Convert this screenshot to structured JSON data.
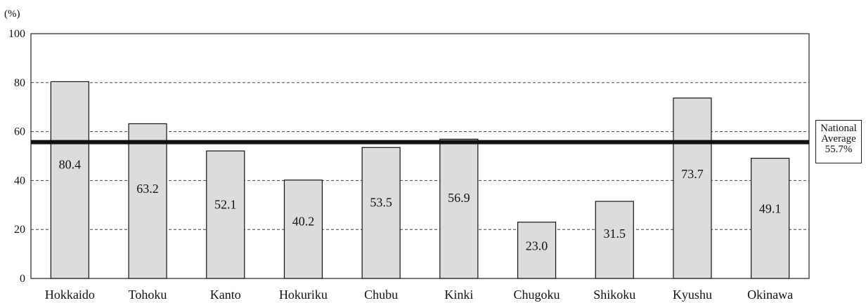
{
  "chart_data": {
    "type": "bar",
    "y_unit_label": "(%)",
    "categories": [
      "Hokkaido",
      "Tohoku",
      "Kanto",
      "Hokuriku",
      "Chubu",
      "Kinki",
      "Chugoku",
      "Shikoku",
      "Kyushu",
      "Okinawa"
    ],
    "values": [
      80.4,
      63.2,
      52.1,
      40.2,
      53.5,
      56.9,
      23.0,
      31.5,
      73.7,
      49.1
    ],
    "value_labels": [
      "80.4",
      "63.2",
      "52.1",
      "40.2",
      "53.5",
      "56.9",
      "23.0",
      "31.5",
      "73.7",
      "49.1"
    ],
    "ylim": [
      0,
      100
    ],
    "yticks": [
      "0",
      "20",
      "40",
      "60",
      "80",
      "100"
    ],
    "grid": "dashed horizontal",
    "bar_color": "#dcdcdc",
    "reference_line": {
      "value": 55.7,
      "label_lines": [
        "National",
        "Average",
        "55.7%"
      ],
      "color": "#111111"
    }
  }
}
